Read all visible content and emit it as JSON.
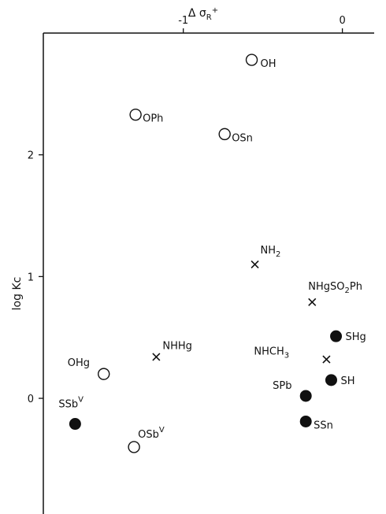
{
  "chart_data": {
    "type": "scatter",
    "title": "",
    "xlabel": "Δ σR+",
    "ylabel": "log Kc",
    "xlim": [
      -1.88,
      0.2
    ],
    "ylim": [
      -0.95,
      3.0
    ],
    "x_axis_position": "top",
    "grid": false,
    "x_ticks": [
      {
        "value": -1,
        "label": "-1"
      },
      {
        "value": 0,
        "label": "0"
      }
    ],
    "y_ticks": [
      {
        "value": 0,
        "label": "0"
      },
      {
        "value": 1,
        "label": "1"
      },
      {
        "value": 2,
        "label": "2"
      }
    ],
    "points": [
      {
        "label": "OH",
        "x": -0.57,
        "y": 2.78,
        "marker": "open-circle"
      },
      {
        "label": "OPh",
        "x": -1.3,
        "y": 2.33,
        "marker": "open-circle"
      },
      {
        "label": "OSn",
        "x": -0.74,
        "y": 2.17,
        "marker": "open-circle"
      },
      {
        "label": "NH2",
        "x": -0.55,
        "y": 1.1,
        "marker": "cross"
      },
      {
        "label": "NHgSO2Ph",
        "x": -0.19,
        "y": 0.79,
        "marker": "cross"
      },
      {
        "label": "SHg",
        "x": -0.04,
        "y": 0.51,
        "marker": "filled-circle"
      },
      {
        "label": "NHHg",
        "x": -1.17,
        "y": 0.34,
        "marker": "cross"
      },
      {
        "label": "NHCH3",
        "x": -0.1,
        "y": 0.32,
        "marker": "cross"
      },
      {
        "label": "OHg",
        "x": -1.5,
        "y": 0.2,
        "marker": "open-circle"
      },
      {
        "label": "SH",
        "x": -0.07,
        "y": 0.15,
        "marker": "filled-circle"
      },
      {
        "label": "SPb",
        "x": -0.23,
        "y": 0.02,
        "marker": "filled-circle"
      },
      {
        "label": "SSbV",
        "x": -1.68,
        "y": -0.21,
        "marker": "filled-circle"
      },
      {
        "label": "SSn",
        "x": -0.23,
        "y": -0.19,
        "marker": "filled-circle"
      },
      {
        "label": "OSbV",
        "x": -1.31,
        "y": -0.4,
        "marker": "open-circle"
      }
    ]
  }
}
